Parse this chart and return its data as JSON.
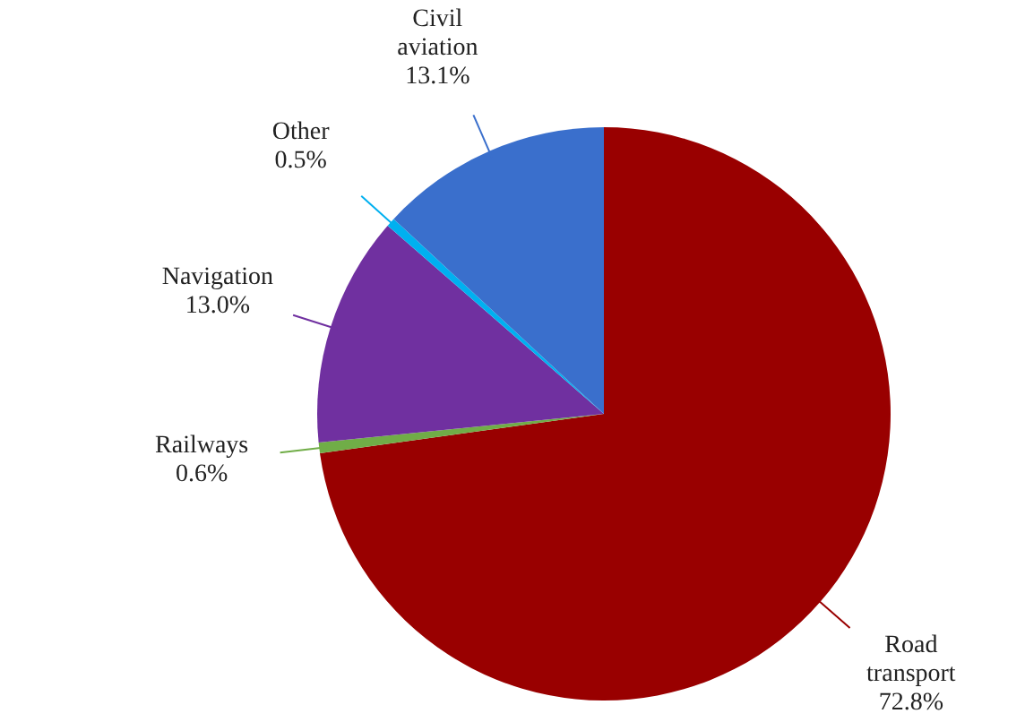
{
  "chart_data": {
    "type": "pie",
    "categories": [
      "Road transport",
      "Railways",
      "Navigation",
      "Other",
      "Civil aviation"
    ],
    "values": [
      72.8,
      0.6,
      13.0,
      0.5,
      13.1
    ],
    "colors": [
      "#990000",
      "#70ad47",
      "#7030a0",
      "#00b0f0",
      "#3a6fcc"
    ],
    "value_labels": [
      "72.8%",
      "0.6%",
      "13.0%",
      "0.5%",
      "13.1%"
    ]
  }
}
